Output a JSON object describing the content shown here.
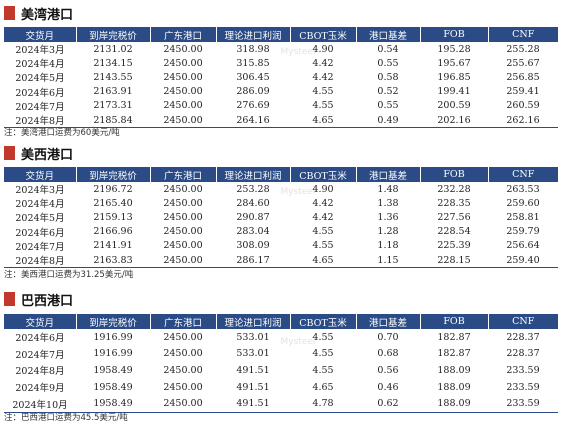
{
  "headers": [
    "交货月",
    "到岸完税价",
    "广东港口",
    "理论进口利润",
    "CBOT玉米",
    "港口基差",
    "FOB",
    "CNF"
  ],
  "watermark": "Mysteel",
  "sections": [
    {
      "title": "美湾港口",
      "rows": [
        [
          "2024年3月",
          "2131.02",
          "2450.00",
          "318.98",
          "4.90",
          "0.54",
          "195.28",
          "255.28"
        ],
        [
          "2024年4月",
          "2134.15",
          "2450.00",
          "315.85",
          "4.42",
          "0.55",
          "195.67",
          "255.67"
        ],
        [
          "2024年5月",
          "2143.55",
          "2450.00",
          "306.45",
          "4.42",
          "0.58",
          "196.85",
          "256.85"
        ],
        [
          "2024年6月",
          "2163.91",
          "2450.00",
          "286.09",
          "4.55",
          "0.52",
          "199.41",
          "259.41"
        ],
        [
          "2024年7月",
          "2173.31",
          "2450.00",
          "276.69",
          "4.55",
          "0.55",
          "200.59",
          "260.59"
        ],
        [
          "2024年8月",
          "2185.84",
          "2450.00",
          "264.16",
          "4.65",
          "0.49",
          "202.16",
          "262.16"
        ]
      ],
      "note": "注：美湾港口运费为60美元/吨"
    },
    {
      "title": "美西港口",
      "rows": [
        [
          "2024年3月",
          "2196.72",
          "2450.00",
          "253.28",
          "4.90",
          "1.48",
          "232.28",
          "263.53"
        ],
        [
          "2024年4月",
          "2165.40",
          "2450.00",
          "284.60",
          "4.42",
          "1.38",
          "228.35",
          "259.60"
        ],
        [
          "2024年5月",
          "2159.13",
          "2450.00",
          "290.87",
          "4.42",
          "1.36",
          "227.56",
          "258.81"
        ],
        [
          "2024年6月",
          "2166.96",
          "2450.00",
          "283.04",
          "4.55",
          "1.28",
          "228.54",
          "259.79"
        ],
        [
          "2024年7月",
          "2141.91",
          "2450.00",
          "308.09",
          "4.55",
          "1.18",
          "225.39",
          "256.64"
        ],
        [
          "2024年8月",
          "2163.83",
          "2450.00",
          "286.17",
          "4.65",
          "1.15",
          "228.15",
          "259.40"
        ]
      ],
      "note": "注：美西港口运费为31.25美元/吨"
    },
    {
      "title": "巴西港口",
      "rows": [
        [
          "2024年6月",
          "1916.99",
          "2450.00",
          "533.01",
          "4.55",
          "0.70",
          "182.87",
          "228.37"
        ],
        [
          "2024年7月",
          "1916.99",
          "2450.00",
          "533.01",
          "4.55",
          "0.68",
          "182.87",
          "228.37"
        ],
        [
          "2024年8月",
          "1958.49",
          "2450.00",
          "491.51",
          "4.55",
          "0.56",
          "188.09",
          "233.59"
        ],
        [
          "2024年9月",
          "1958.49",
          "2450.00",
          "491.51",
          "4.65",
          "0.46",
          "188.09",
          "233.59"
        ],
        [
          "2024年10月",
          "1958.49",
          "2450.00",
          "491.51",
          "4.78",
          "0.62",
          "188.09",
          "233.59"
        ]
      ],
      "note": "注：巴西港口运费为45.5美元/吨"
    }
  ]
}
